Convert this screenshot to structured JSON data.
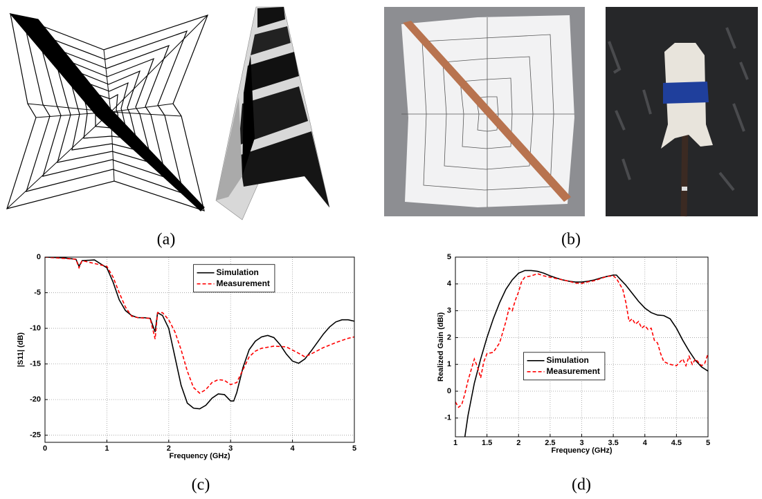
{
  "panel_labels": [
    "(a)",
    "(b)",
    "(c)",
    "(d)"
  ],
  "chart_data": [
    {
      "type": "line",
      "xlabel": "Frequency (GHz)",
      "ylabel": "|S11| (dB)",
      "xlim": [
        0,
        5
      ],
      "ylim": [
        -26,
        0
      ],
      "xticks": [
        0,
        1,
        2,
        3,
        4,
        5
      ],
      "yticks": [
        0,
        -5,
        -10,
        -15,
        -20,
        -25
      ],
      "grid": true,
      "legend": "upper center",
      "series": [
        {
          "name": "Simulation",
          "color": "#000000",
          "dash": "solid",
          "x": [
            0,
            0.3,
            0.5,
            0.55,
            0.6,
            0.8,
            1.0,
            1.1,
            1.2,
            1.3,
            1.4,
            1.5,
            1.6,
            1.7,
            1.78,
            1.82,
            1.9,
            2.0,
            2.1,
            2.2,
            2.3,
            2.4,
            2.5,
            2.6,
            2.7,
            2.8,
            2.9,
            3.0,
            3.05,
            3.1,
            3.2,
            3.3,
            3.4,
            3.5,
            3.6,
            3.7,
            3.8,
            3.9,
            4.0,
            4.1,
            4.2,
            4.3,
            4.4,
            4.5,
            4.6,
            4.7,
            4.8,
            4.9,
            5.0
          ],
          "values": [
            0,
            -0.1,
            -0.3,
            -1.3,
            -0.5,
            -0.4,
            -1.5,
            -3.5,
            -6,
            -7.5,
            -8.2,
            -8.5,
            -8.5,
            -8.6,
            -10.5,
            -7.8,
            -8.2,
            -10,
            -14,
            -18,
            -20.5,
            -21.2,
            -21.3,
            -20.8,
            -19.8,
            -19.2,
            -19.3,
            -20.2,
            -20.2,
            -19,
            -15.5,
            -13,
            -11.8,
            -11.2,
            -11,
            -11.3,
            -12.3,
            -13.6,
            -14.6,
            -14.9,
            -14.3,
            -13.2,
            -12,
            -10.8,
            -9.8,
            -9.1,
            -8.8,
            -8.8,
            -9.0
          ]
        },
        {
          "name": "Measurement",
          "color": "#ff0000",
          "dash": "dashed",
          "x": [
            0,
            0.5,
            0.55,
            0.6,
            1.0,
            1.1,
            1.2,
            1.3,
            1.4,
            1.5,
            1.7,
            1.78,
            1.82,
            1.9,
            2.0,
            2.1,
            2.2,
            2.3,
            2.4,
            2.5,
            2.6,
            2.7,
            2.8,
            2.9,
            3.0,
            3.1,
            3.2,
            3.3,
            3.4,
            3.5,
            3.7,
            3.9,
            4.1,
            4.2,
            4.3,
            4.5,
            4.7,
            4.9,
            5.0
          ],
          "values": [
            0,
            -0.3,
            -1.5,
            -0.5,
            -1.3,
            -2.8,
            -5,
            -7,
            -8.3,
            -8.5,
            -8.6,
            -11.5,
            -7.8,
            -7.8,
            -8.8,
            -10.5,
            -13,
            -16,
            -18.3,
            -19.1,
            -18.6,
            -17.6,
            -17.2,
            -17.3,
            -17.9,
            -17.6,
            -15.8,
            -14,
            -13.2,
            -12.8,
            -12.5,
            -12.6,
            -13.5,
            -14,
            -13.6,
            -12.7,
            -12,
            -11.4,
            -11.2
          ]
        }
      ]
    },
    {
      "type": "line",
      "xlabel": "Frequency (GHz)",
      "ylabel": "Realized Gain (dBi)",
      "xlim": [
        1,
        5
      ],
      "ylim": [
        -1.7,
        5
      ],
      "xticks": [
        1,
        1.5,
        2,
        2.5,
        3,
        3.5,
        4,
        4.5,
        5
      ],
      "yticks": [
        -1,
        0,
        1,
        2,
        3,
        4,
        5
      ],
      "grid": true,
      "legend": "center",
      "series": [
        {
          "name": "Simulation",
          "color": "#000000",
          "dash": "solid",
          "x": [
            1.15,
            1.2,
            1.3,
            1.4,
            1.5,
            1.6,
            1.7,
            1.8,
            1.9,
            2.0,
            2.1,
            2.2,
            2.3,
            2.4,
            2.5,
            2.6,
            2.7,
            2.8,
            2.9,
            3.0,
            3.1,
            3.2,
            3.3,
            3.4,
            3.5,
            3.55,
            3.6,
            3.7,
            3.8,
            3.9,
            4.0,
            4.1,
            4.2,
            4.3,
            4.4,
            4.5,
            4.6,
            4.7,
            4.8,
            4.9,
            5.0
          ],
          "values": [
            -1.7,
            -0.9,
            0.3,
            1.2,
            2.0,
            2.7,
            3.3,
            3.8,
            4.15,
            4.4,
            4.5,
            4.5,
            4.47,
            4.4,
            4.3,
            4.22,
            4.15,
            4.1,
            4.07,
            4.07,
            4.1,
            4.15,
            4.22,
            4.28,
            4.33,
            4.33,
            4.2,
            3.95,
            3.65,
            3.35,
            3.1,
            2.93,
            2.84,
            2.82,
            2.7,
            2.35,
            1.9,
            1.5,
            1.15,
            0.9,
            0.75
          ]
        },
        {
          "name": "Measurement",
          "color": "#ff0000",
          "dash": "dashed",
          "x": [
            1.0,
            1.05,
            1.1,
            1.15,
            1.2,
            1.25,
            1.3,
            1.35,
            1.4,
            1.45,
            1.5,
            1.6,
            1.7,
            1.8,
            1.85,
            1.9,
            1.95,
            2.0,
            2.05,
            2.1,
            2.2,
            2.3,
            2.4,
            2.5,
            2.6,
            2.7,
            2.8,
            2.9,
            3.0,
            3.1,
            3.2,
            3.3,
            3.4,
            3.5,
            3.55,
            3.6,
            3.65,
            3.7,
            3.75,
            3.8,
            3.85,
            3.9,
            3.95,
            4.0,
            4.05,
            4.1,
            4.15,
            4.2,
            4.25,
            4.3,
            4.4,
            4.5,
            4.6,
            4.65,
            4.7,
            4.75,
            4.8,
            4.9,
            4.95,
            5.0
          ],
          "values": [
            -0.4,
            -0.6,
            -0.5,
            -0.1,
            0.4,
            0.8,
            1.2,
            0.9,
            0.5,
            1.1,
            1.4,
            1.45,
            1.8,
            2.6,
            3.1,
            3.0,
            3.4,
            3.7,
            4.1,
            4.25,
            4.3,
            4.38,
            4.3,
            4.25,
            4.2,
            4.15,
            4.1,
            4.03,
            4.02,
            4.08,
            4.12,
            4.2,
            4.28,
            4.3,
            4.2,
            4.0,
            3.8,
            3.3,
            2.6,
            2.7,
            2.5,
            2.6,
            2.35,
            2.45,
            2.3,
            2.35,
            1.9,
            1.8,
            1.4,
            1.1,
            1.0,
            0.95,
            1.2,
            0.95,
            1.3,
            1.0,
            1.2,
            0.95,
            1.05,
            1.4
          ]
        }
      ]
    }
  ]
}
